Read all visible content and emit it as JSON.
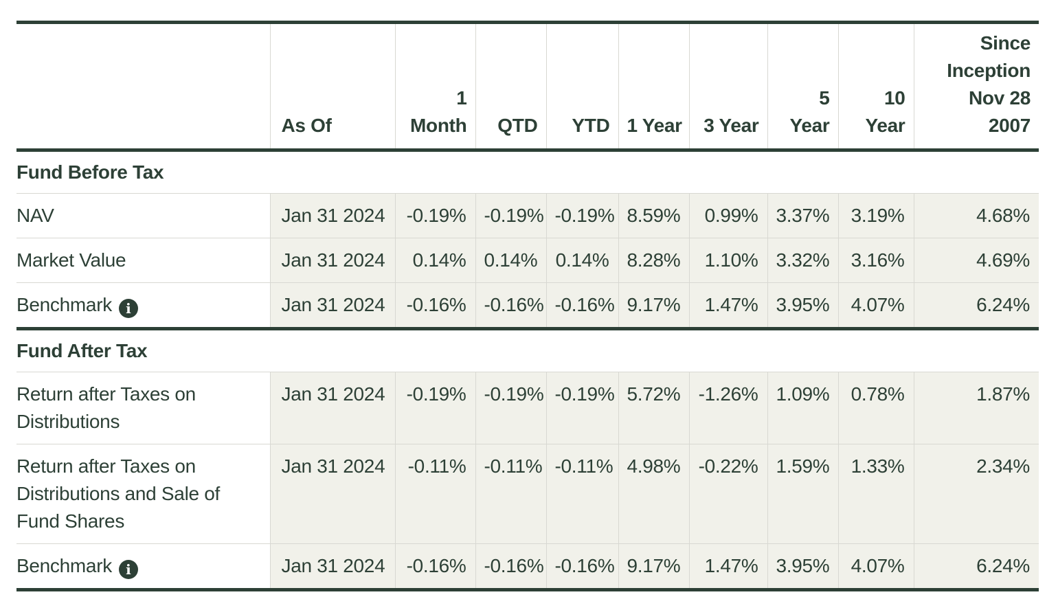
{
  "colors": {
    "text_and_rules": "#2d4036",
    "value_cell_background": "#f1f1ea",
    "grid_line": "#d8d8d2",
    "page_background": "#ffffff"
  },
  "icons": {
    "info_glyph": "i"
  },
  "table": {
    "columns": [
      {
        "id": "row-label",
        "label": "",
        "align": "left"
      },
      {
        "id": "as-of",
        "label": "As Of",
        "align": "left"
      },
      {
        "id": "1-month",
        "label": "1\nMonth",
        "align": "right"
      },
      {
        "id": "qtd",
        "label": "QTD",
        "align": "right"
      },
      {
        "id": "ytd",
        "label": "YTD",
        "align": "right"
      },
      {
        "id": "1-year",
        "label": "1 Year",
        "align": "right"
      },
      {
        "id": "3-year",
        "label": "3 Year",
        "align": "right"
      },
      {
        "id": "5-year",
        "label": "5\nYear",
        "align": "right"
      },
      {
        "id": "10-year",
        "label": "10\nYear",
        "align": "right"
      },
      {
        "id": "since-inception",
        "label": "Since\nInception\nNov 28\n2007",
        "align": "right"
      }
    ],
    "sections": [
      {
        "title": "Fund Before Tax",
        "rows": [
          {
            "label": "NAV",
            "has_info_icon": false,
            "values": [
              "Jan 31 2024",
              "-0.19%",
              "-0.19%",
              "-0.19%",
              "8.59%",
              "0.99%",
              "3.37%",
              "3.19%",
              "4.68%"
            ]
          },
          {
            "label": "Market Value",
            "has_info_icon": false,
            "values": [
              "Jan 31 2024",
              "0.14%",
              "0.14%",
              "0.14%",
              "8.28%",
              "1.10%",
              "3.32%",
              "3.16%",
              "4.69%"
            ]
          },
          {
            "label": "Benchmark",
            "has_info_icon": true,
            "values": [
              "Jan 31 2024",
              "-0.16%",
              "-0.16%",
              "-0.16%",
              "9.17%",
              "1.47%",
              "3.95%",
              "4.07%",
              "6.24%"
            ]
          }
        ]
      },
      {
        "title": "Fund After Tax",
        "rows": [
          {
            "label": "Return after Taxes on Distributions",
            "has_info_icon": false,
            "values": [
              "Jan 31 2024",
              "-0.19%",
              "-0.19%",
              "-0.19%",
              "5.72%",
              "-1.26%",
              "1.09%",
              "0.78%",
              "1.87%"
            ]
          },
          {
            "label": "Return after Taxes on Distributions and Sale of Fund Shares",
            "has_info_icon": false,
            "values": [
              "Jan 31 2024",
              "-0.11%",
              "-0.11%",
              "-0.11%",
              "4.98%",
              "-0.22%",
              "1.59%",
              "1.33%",
              "2.34%"
            ]
          },
          {
            "label": "Benchmark",
            "has_info_icon": true,
            "values": [
              "Jan 31 2024",
              "-0.16%",
              "-0.16%",
              "-0.16%",
              "9.17%",
              "1.47%",
              "3.95%",
              "4.07%",
              "6.24%"
            ]
          }
        ]
      }
    ]
  },
  "chart_data": {
    "type": "table",
    "title": "Fund performance returns",
    "categories": [
      "As Of",
      "1 Month",
      "QTD",
      "YTD",
      "1 Year",
      "3 Year",
      "5 Year",
      "10 Year",
      "Since Inception Nov 28 2007"
    ],
    "series": [
      {
        "name": "NAV",
        "values": [
          "Jan 31 2024",
          -0.19,
          -0.19,
          -0.19,
          8.59,
          0.99,
          3.37,
          3.19,
          4.68
        ]
      },
      {
        "name": "Market Value",
        "values": [
          "Jan 31 2024",
          0.14,
          0.14,
          0.14,
          8.28,
          1.1,
          3.32,
          3.16,
          4.69
        ]
      },
      {
        "name": "Benchmark (Fund Before Tax)",
        "values": [
          "Jan 31 2024",
          -0.16,
          -0.16,
          -0.16,
          9.17,
          1.47,
          3.95,
          4.07,
          6.24
        ]
      },
      {
        "name": "Return after Taxes on Distributions",
        "values": [
          "Jan 31 2024",
          -0.19,
          -0.19,
          -0.19,
          5.72,
          -1.26,
          1.09,
          0.78,
          1.87
        ]
      },
      {
        "name": "Return after Taxes on Distributions and Sale of Fund Shares",
        "values": [
          "Jan 31 2024",
          -0.11,
          -0.11,
          -0.11,
          4.98,
          -0.22,
          1.59,
          1.33,
          2.34
        ]
      },
      {
        "name": "Benchmark (Fund After Tax)",
        "values": [
          "Jan 31 2024",
          -0.16,
          -0.16,
          -0.16,
          9.17,
          1.47,
          3.95,
          4.07,
          6.24
        ]
      }
    ],
    "unit": "%"
  }
}
